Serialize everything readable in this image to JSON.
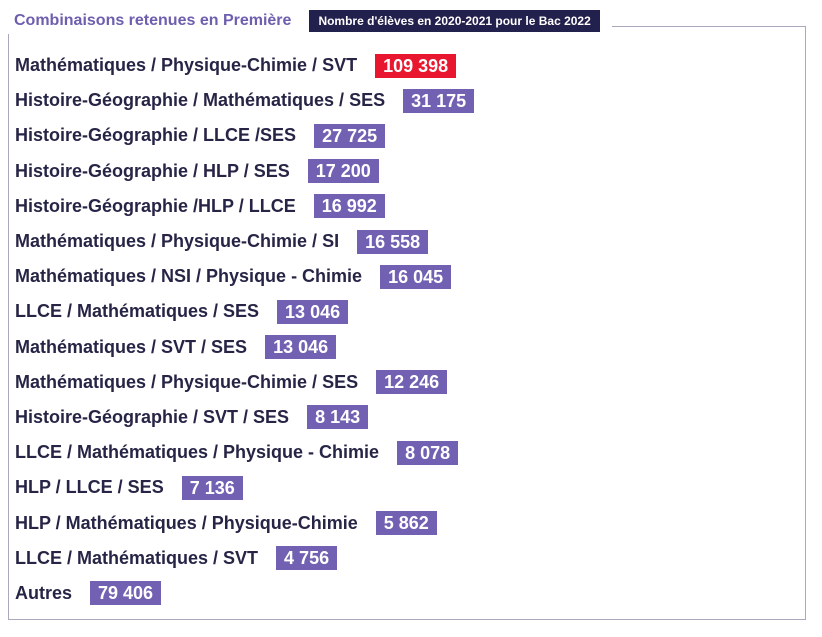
{
  "header": {
    "title": "Combinaisons retenues en Première",
    "badge": "Nombre d'élèves en 2020-2021 pour le Bac 2022"
  },
  "colors": {
    "accent": "#7261b2",
    "highlight": "#e8172f",
    "badge_bg": "#22204c",
    "title": "#6d5fae",
    "text": "#272546"
  },
  "chart_data": {
    "type": "table",
    "title": "Combinaisons retenues en Première",
    "subtitle": "Nombre d'élèves en 2020-2021 pour le Bac 2022",
    "rows": [
      {
        "label": "Mathématiques / Physique-Chimie / SVT",
        "value": 109398,
        "display": "109 398",
        "highlight": true
      },
      {
        "label": "Histoire-Géographie / Mathématiques / SES",
        "value": 31175,
        "display": "31 175",
        "highlight": false
      },
      {
        "label": "Histoire-Géographie / LLCE /SES",
        "value": 27725,
        "display": "27 725",
        "highlight": false
      },
      {
        "label": "Histoire-Géographie / HLP / SES",
        "value": 17200,
        "display": "17 200",
        "highlight": false
      },
      {
        "label": "Histoire-Géographie /HLP / LLCE",
        "value": 16992,
        "display": "16 992",
        "highlight": false
      },
      {
        "label": "Mathématiques / Physique-Chimie / SI",
        "value": 16558,
        "display": "16 558",
        "highlight": false
      },
      {
        "label": "Mathématiques / NSI / Physique - Chimie",
        "value": 16045,
        "display": "16 045",
        "highlight": false
      },
      {
        "label": "LLCE / Mathématiques / SES",
        "value": 13046,
        "display": "13 046",
        "highlight": false
      },
      {
        "label": "Mathématiques / SVT / SES",
        "value": 13046,
        "display": "13 046",
        "highlight": false
      },
      {
        "label": "Mathématiques / Physique-Chimie / SES",
        "value": 12246,
        "display": "12 246",
        "highlight": false
      },
      {
        "label": "Histoire-Géographie / SVT / SES",
        "value": 8143,
        "display": "8 143",
        "highlight": false
      },
      {
        "label": "LLCE / Mathématiques / Physique - Chimie",
        "value": 8078,
        "display": "8 078",
        "highlight": false
      },
      {
        "label": "HLP / LLCE / SES",
        "value": 7136,
        "display": "7 136",
        "highlight": false
      },
      {
        "label": "HLP / Mathématiques / Physique-Chimie",
        "value": 5862,
        "display": "5 862",
        "highlight": false
      },
      {
        "label": "LLCE / Mathématiques / SVT",
        "value": 4756,
        "display": "4 756",
        "highlight": false
      },
      {
        "label": "Autres",
        "value": 79406,
        "display": "79 406",
        "highlight": false
      }
    ]
  }
}
